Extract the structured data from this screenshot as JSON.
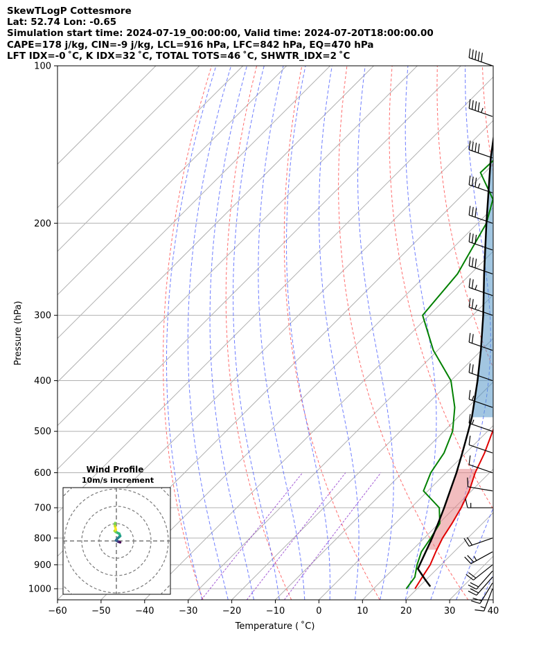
{
  "header": {
    "lines": [
      "SkewTLogP Cottesmore",
      "Lat: 52.74   Lon: -0.65",
      "Simulation start time: 2024-07-19_00:00:00, Valid time: 2024-07-20T18:00:00.00",
      "CAPE=178 j/kg, CIN=-9 j/kg, LCL=916 hPa, LFC=842 hPa, EQ=470 hPa",
      "LFT IDX=-0 ˚C, K IDX=32 ˚C, TOTAL TOTS=46 ˚C, SHWTR_IDX=2 ˚C"
    ]
  },
  "chart_data": {
    "type": "skewt-logp",
    "xlabel": "Temperature ( ˚C)",
    "ylabel": "Pressure (hPa)",
    "xlim": [
      -60,
      40
    ],
    "ylim": [
      1050,
      100
    ],
    "x_ticks": [
      -60,
      -50,
      -40,
      -30,
      -20,
      -10,
      0,
      10,
      20,
      30,
      40
    ],
    "y_ticks": [
      100,
      200,
      300,
      400,
      500,
      600,
      700,
      800,
      900,
      1000
    ],
    "grid": true,
    "series": [
      {
        "kind": "temperature",
        "color": "#e00000",
        "points": [
          [
            1000,
            19.5
          ],
          [
            950,
            18.5
          ],
          [
            900,
            17.5
          ],
          [
            850,
            15.8
          ],
          [
            800,
            14.2
          ],
          [
            750,
            13.0
          ],
          [
            700,
            11.5
          ],
          [
            650,
            9.5
          ],
          [
            600,
            6.7
          ],
          [
            550,
            4.3
          ],
          [
            500,
            1.2
          ],
          [
            450,
            -2.2
          ],
          [
            400,
            -6.5
          ],
          [
            350,
            -11.2
          ],
          [
            300,
            -17.5
          ],
          [
            270,
            -22.5
          ],
          [
            250,
            -25.0
          ],
          [
            220,
            -29.0
          ],
          [
            200,
            -33.0
          ],
          [
            170,
            -36.0
          ],
          [
            150,
            -38.0
          ],
          [
            120,
            -44.0
          ],
          [
            100,
            -53.0
          ]
        ]
      },
      {
        "kind": "dewpoint",
        "color": "#008000",
        "points": [
          [
            1000,
            17.5
          ],
          [
            950,
            16.8
          ],
          [
            900,
            14.5
          ],
          [
            850,
            12.5
          ],
          [
            800,
            11.5
          ],
          [
            750,
            10.2
          ],
          [
            700,
            6.5
          ],
          [
            650,
            -1.0
          ],
          [
            600,
            -3.5
          ],
          [
            550,
            -5.0
          ],
          [
            500,
            -8.0
          ],
          [
            450,
            -13.0
          ],
          [
            400,
            -20.0
          ],
          [
            350,
            -31.0
          ],
          [
            300,
            -41.5
          ],
          [
            250,
            -43.0
          ],
          [
            200,
            -48.0
          ],
          [
            180,
            -52.0
          ],
          [
            160,
            -61.0
          ],
          [
            120,
            -60.0
          ],
          [
            100,
            -60.0
          ]
        ]
      },
      {
        "kind": "parcel",
        "color": "#000000",
        "points": [
          [
            990,
            22.5
          ],
          [
            960,
            19.7
          ],
          [
            916,
            15.6
          ],
          [
            900,
            15.1
          ],
          [
            850,
            13.5
          ],
          [
            800,
            11.8
          ],
          [
            750,
            9.8
          ],
          [
            700,
            7.6
          ],
          [
            650,
            5.1
          ],
          [
            600,
            2.4
          ],
          [
            550,
            -0.8
          ],
          [
            500,
            -4.4
          ],
          [
            470,
            -6.8
          ],
          [
            450,
            -8.7
          ],
          [
            400,
            -13.9
          ],
          [
            350,
            -20.1
          ],
          [
            300,
            -27.6
          ],
          [
            250,
            -36.9
          ],
          [
            200,
            -48.0
          ],
          [
            150,
            -62.0
          ],
          [
            120,
            -72.0
          ],
          [
            100,
            -80.0
          ]
        ]
      }
    ],
    "shading": {
      "cape_color": "#5597c9",
      "cin_color": "#e8868a",
      "cape_range_hpa": [
        470,
        100
      ],
      "cin_range_hpa": [
        842,
        590
      ]
    },
    "wind_barbs": {
      "levels": [
        1000,
        975,
        950,
        925,
        900,
        850,
        800,
        700,
        650,
        600,
        550,
        500,
        450,
        400,
        350,
        300,
        275,
        250,
        225,
        200,
        175,
        150,
        125,
        100
      ],
      "speed_kt": [
        15,
        20,
        20,
        20,
        20,
        25,
        20,
        15,
        10,
        10,
        10,
        15,
        15,
        20,
        20,
        25,
        25,
        30,
        30,
        30,
        35,
        40,
        45,
        50
      ],
      "direction_deg": [
        200,
        210,
        220,
        220,
        230,
        240,
        250,
        270,
        280,
        290,
        290,
        290,
        290,
        290,
        290,
        290,
        290,
        290,
        290,
        290,
        290,
        290,
        290,
        290
      ]
    },
    "inset": {
      "title": "Wind Profile",
      "subtitle": "10m/s increment",
      "hodograph_ms": [
        [
          2.2,
          -0.8
        ],
        [
          1.2,
          -0.5
        ],
        [
          0.4,
          0.0
        ],
        [
          -0.2,
          0.3
        ],
        [
          0.6,
          1.4
        ],
        [
          2.2,
          2.8
        ],
        [
          1.7,
          4.2
        ],
        [
          -0.4,
          5.2
        ],
        [
          -1.0,
          5.8
        ],
        [
          -0.3,
          6.5
        ],
        [
          -0.8,
          8.6
        ],
        [
          -0.9,
          9.8
        ],
        [
          -0.7,
          10.4
        ]
      ]
    }
  }
}
